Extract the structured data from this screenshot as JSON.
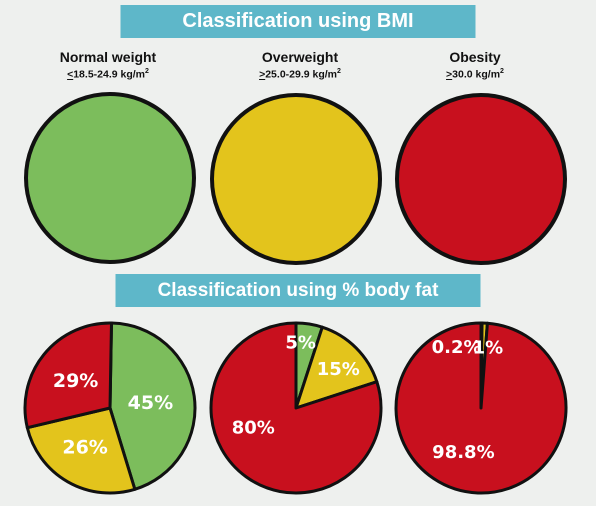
{
  "slide": {
    "bmi_title": "Classification using BMI",
    "fat_title": "Classification using % body fat"
  },
  "categories": [
    {
      "title": "Normal weight",
      "range_symbol": "<",
      "range_text": "18.5-24.9 kg/m",
      "range_exp": "2"
    },
    {
      "title": "Overweight",
      "range_symbol": ">",
      "range_text": "25.0-29.9 kg/m",
      "range_exp": "2"
    },
    {
      "title": "Obesity",
      "range_symbol": ">",
      "range_text": "30.0 kg/m",
      "range_exp": "2"
    }
  ],
  "colors": {
    "green": "#7cbd5c",
    "yellow": "#e3c41c",
    "red": "#c8101e",
    "outline": "#111111"
  },
  "chart_data": [
    {
      "type": "pie",
      "title": "Classification using BMI",
      "charts": [
        {
          "category": "Normal weight",
          "color": "green"
        },
        {
          "category": "Overweight",
          "color": "yellow"
        },
        {
          "category": "Obesity",
          "color": "red"
        }
      ]
    },
    {
      "type": "pie",
      "title": "Classification using % body fat",
      "charts": [
        {
          "category": "Normal weight",
          "slices": [
            {
              "label": "45%",
              "value": 45,
              "color": "green"
            },
            {
              "label": "26%",
              "value": 26,
              "color": "yellow"
            },
            {
              "label": "29%",
              "value": 29,
              "color": "red"
            }
          ]
        },
        {
          "category": "Overweight",
          "slices": [
            {
              "label": "5%",
              "value": 5,
              "color": "green"
            },
            {
              "label": "15%",
              "value": 15,
              "color": "yellow"
            },
            {
              "label": "80%",
              "value": 80,
              "color": "red"
            }
          ]
        },
        {
          "category": "Obesity",
          "slices": [
            {
              "label": "0.2%",
              "value": 0.2,
              "color": "green"
            },
            {
              "label": "1%",
              "value": 1,
              "color": "yellow"
            },
            {
              "label": "98.8%",
              "value": 98.8,
              "color": "red"
            }
          ]
        }
      ]
    }
  ]
}
